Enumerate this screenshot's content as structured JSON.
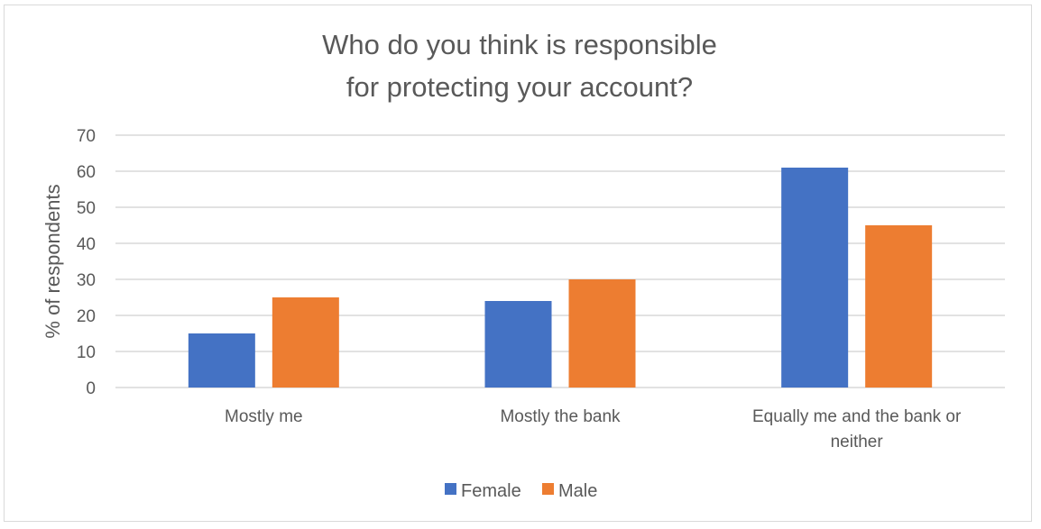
{
  "chart_data": {
    "type": "bar",
    "title_lines": [
      "Who do you think is responsible",
      "for protecting your account?"
    ],
    "categories": [
      [
        "Mostly me"
      ],
      [
        "Mostly the bank"
      ],
      [
        "Equally me and the bank or",
        "neither"
      ]
    ],
    "series": [
      {
        "name": "Female",
        "color": "#4472C4",
        "values": [
          15,
          24,
          61
        ]
      },
      {
        "name": "Male",
        "color": "#ED7D31",
        "values": [
          25,
          30,
          45
        ]
      }
    ],
    "ylabel": "% of respondents",
    "ylim": [
      0,
      70
    ],
    "yticks": [
      0,
      10,
      20,
      30,
      40,
      50,
      60,
      70
    ],
    "grid": true,
    "legend_position": "bottom"
  }
}
